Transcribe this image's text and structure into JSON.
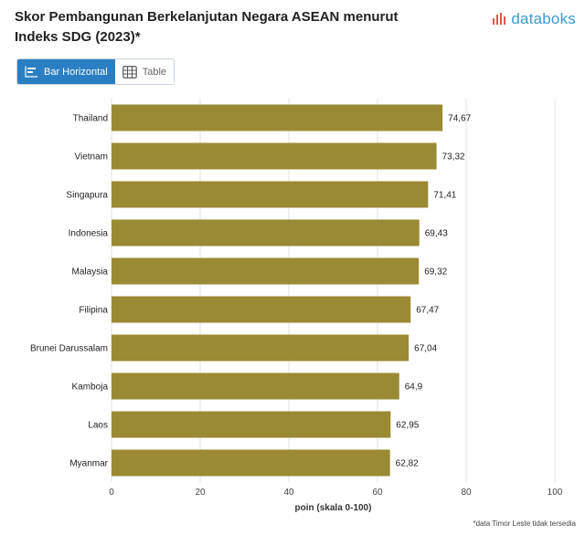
{
  "header": {
    "title": "Skor Pembangunan Berkelanjutan Negara ASEAN menurut Indeks SDG (2023)*",
    "brand_name": "databoks"
  },
  "tabs": [
    {
      "label": "Bar Horizontal",
      "icon": "bar-chart-icon",
      "active": true
    },
    {
      "label": "Table",
      "icon": "table-icon",
      "active": false
    }
  ],
  "colors": {
    "bar": "#9b8a34",
    "grid": "#e2e2e2",
    "accent": "#2a7fc4",
    "brand": "#3a9bd4",
    "brand_mark": "#e0584b"
  },
  "chart_data": {
    "type": "bar",
    "orientation": "horizontal",
    "categories": [
      "Thailand",
      "Vietnam",
      "Singapura",
      "Indonesia",
      "Malaysia",
      "Filipina",
      "Brunei Darussalam",
      "Kamboja",
      "Laos",
      "Myanmar"
    ],
    "values": [
      74.67,
      73.32,
      71.41,
      69.43,
      69.32,
      67.47,
      67.04,
      64.9,
      62.95,
      62.82
    ],
    "value_labels": [
      "74,67",
      "73,32",
      "71,41",
      "69,43",
      "69,32",
      "67,47",
      "67,04",
      "64,9",
      "62,95",
      "62,82"
    ],
    "title": "Skor Pembangunan Berkelanjutan Negara ASEAN menurut Indeks SDG (2023)*",
    "xlabel": "poin (skala 0-100)",
    "ylabel": "",
    "xlim": [
      0,
      100
    ],
    "xticks": [
      0,
      20,
      40,
      60,
      80,
      100
    ],
    "grid": true,
    "legend": "none"
  },
  "footnote": "*data Timor Leste tidak tersedia"
}
